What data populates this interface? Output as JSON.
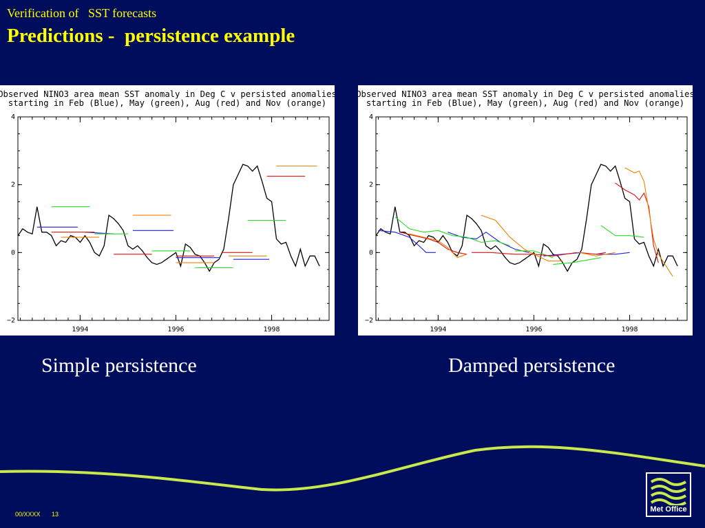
{
  "slide": {
    "supertitle": "Verification of   SST forecasts",
    "title": "Predictions -  persistence example",
    "footer_code": "00/XXXX",
    "page_number": "13",
    "logo_text": "Met Office",
    "colors": {
      "background": "#000d5c",
      "title": "#ffff00",
      "caption": "#ffffff",
      "swoosh": "#c9e84b"
    }
  },
  "captions": {
    "left": "Simple persistence",
    "right": "Damped persistence"
  },
  "chart_data": [
    {
      "type": "line",
      "title_line1": "Observed NINO3 area mean SST anomaly in Deg C v persisted anomalies",
      "title_line2": "starting in Feb (Blue), May (green), Aug (red) and Nov (orange)",
      "xlabel": "",
      "ylabel": "",
      "xlim": [
        1992.7,
        1999.2
      ],
      "ylim": [
        -2,
        4
      ],
      "xticks": [
        "1994",
        "1996",
        "1998"
      ],
      "yticks": [
        "4",
        "2",
        "0",
        "−2"
      ],
      "grid": false,
      "series": [
        {
          "color": "black",
          "x": [
            1992.7,
            1992.8,
            1992.9,
            1993.0,
            1993.1,
            1993.2,
            1993.3,
            1993.4,
            1993.5,
            1993.6,
            1993.7,
            1993.8,
            1993.9,
            1994.0,
            1994.1,
            1994.2,
            1994.3,
            1994.4,
            1994.5,
            1994.6,
            1994.7,
            1994.8,
            1994.9,
            1995.0,
            1995.1,
            1995.2,
            1995.3,
            1995.4,
            1995.5,
            1995.6,
            1995.7,
            1995.8,
            1995.9,
            1996.0,
            1996.1,
            1996.2,
            1996.3,
            1996.4,
            1996.5,
            1996.6,
            1996.7,
            1996.8,
            1996.9,
            1997.0,
            1997.1,
            1997.2,
            1997.3,
            1997.4,
            1997.5,
            1997.6,
            1997.7,
            1997.8,
            1997.9,
            1998.0,
            1998.1,
            1998.2,
            1998.3,
            1998.4,
            1998.5,
            1998.6,
            1998.7,
            1998.8,
            1998.9,
            1999.0
          ],
          "y": [
            0.5,
            0.7,
            0.6,
            0.55,
            1.35,
            0.6,
            0.6,
            0.5,
            0.2,
            0.35,
            0.3,
            0.5,
            0.45,
            0.3,
            0.5,
            0.3,
            0.0,
            -0.1,
            0.2,
            1.1,
            1.0,
            0.85,
            0.65,
            0.2,
            0.1,
            0.2,
            0.05,
            -0.15,
            -0.3,
            -0.35,
            -0.3,
            -0.2,
            -0.1,
            0.0,
            -0.4,
            0.25,
            0.15,
            -0.05,
            -0.1,
            -0.3,
            -0.55,
            -0.3,
            -0.2,
            0.1,
            1.0,
            2.0,
            2.3,
            2.6,
            2.55,
            2.4,
            2.55,
            2.1,
            1.6,
            1.5,
            0.4,
            0.25,
            0.3,
            -0.1,
            -0.4,
            0.1,
            -0.4,
            -0.1,
            -0.1,
            -0.4
          ]
        },
        {
          "color": "blue",
          "segments": [
            [
              [
                1993.1,
                0.75
              ],
              [
                1993.95,
                0.75
              ]
            ],
            [
              [
                1994.1,
                0.6
              ],
              [
                1994.7,
                0.55
              ]
            ],
            [
              [
                1995.1,
                0.65
              ],
              [
                1995.95,
                0.65
              ]
            ],
            [
              [
                1996.0,
                -0.15
              ],
              [
                1996.9,
                -0.15
              ]
            ],
            [
              [
                1997.2,
                -0.2
              ],
              [
                1997.95,
                -0.2
              ]
            ]
          ]
        },
        {
          "color": "green",
          "segments": [
            [
              [
                1993.4,
                1.35
              ],
              [
                1994.2,
                1.35
              ]
            ],
            [
              [
                1994.3,
                0.55
              ],
              [
                1995.0,
                0.55
              ]
            ],
            [
              [
                1995.5,
                0.05
              ],
              [
                1996.3,
                0.05
              ]
            ],
            [
              [
                1996.4,
                -0.45
              ],
              [
                1997.2,
                -0.45
              ]
            ],
            [
              [
                1997.5,
                0.95
              ],
              [
                1998.3,
                0.95
              ]
            ]
          ]
        },
        {
          "color": "red",
          "segments": [
            [
              [
                1993.4,
                0.6
              ],
              [
                1994.3,
                0.6
              ]
            ],
            [
              [
                1994.7,
                -0.05
              ],
              [
                1995.5,
                -0.05
              ]
            ],
            [
              [
                1996.0,
                -0.1
              ],
              [
                1996.8,
                -0.1
              ]
            ],
            [
              [
                1996.95,
                0.0
              ],
              [
                1997.6,
                0.0
              ]
            ],
            [
              [
                1997.9,
                2.25
              ],
              [
                1998.7,
                2.25
              ]
            ]
          ]
        },
        {
          "color": "orange",
          "segments": [
            [
              [
                1993.6,
                0.45
              ],
              [
                1994.4,
                0.45
              ]
            ],
            [
              [
                1995.1,
                1.1
              ],
              [
                1995.9,
                1.1
              ]
            ],
            [
              [
                1996.0,
                -0.3
              ],
              [
                1996.8,
                -0.3
              ]
            ],
            [
              [
                1997.1,
                -0.1
              ],
              [
                1997.9,
                -0.1
              ]
            ],
            [
              [
                1998.1,
                2.55
              ],
              [
                1998.95,
                2.55
              ]
            ]
          ]
        }
      ]
    },
    {
      "type": "line",
      "title_line1": "Observed NINO3 area mean SST anomaly in Deg C v persisted anomalies",
      "title_line2": "starting in Feb (Blue), May (green), Aug (red) and Nov (orange)",
      "xlabel": "",
      "ylabel": "",
      "xlim": [
        1992.7,
        1999.2
      ],
      "ylim": [
        -2,
        4
      ],
      "xticks": [
        "1994",
        "1996",
        "1998"
      ],
      "yticks": [
        "4",
        "2",
        "0",
        "−2"
      ],
      "grid": false,
      "series": [
        {
          "color": "black",
          "x": [
            1992.7,
            1992.8,
            1992.9,
            1993.0,
            1993.1,
            1993.2,
            1993.3,
            1993.4,
            1993.5,
            1993.6,
            1993.7,
            1993.8,
            1993.9,
            1994.0,
            1994.1,
            1994.2,
            1994.3,
            1994.4,
            1994.5,
            1994.6,
            1994.7,
            1994.8,
            1994.9,
            1995.0,
            1995.1,
            1995.2,
            1995.3,
            1995.4,
            1995.5,
            1995.6,
            1995.7,
            1995.8,
            1995.9,
            1996.0,
            1996.1,
            1996.2,
            1996.3,
            1996.4,
            1996.5,
            1996.6,
            1996.7,
            1996.8,
            1996.9,
            1997.0,
            1997.1,
            1997.2,
            1997.3,
            1997.4,
            1997.5,
            1997.6,
            1997.7,
            1997.8,
            1997.9,
            1998.0,
            1998.1,
            1998.2,
            1998.3,
            1998.4,
            1998.5,
            1998.6,
            1998.7,
            1998.8,
            1998.9,
            1999.0
          ],
          "y": [
            0.5,
            0.7,
            0.6,
            0.55,
            1.35,
            0.6,
            0.6,
            0.5,
            0.2,
            0.35,
            0.3,
            0.5,
            0.45,
            0.3,
            0.5,
            0.3,
            0.0,
            -0.1,
            0.2,
            1.1,
            1.0,
            0.85,
            0.65,
            0.2,
            0.1,
            0.2,
            0.05,
            -0.15,
            -0.3,
            -0.35,
            -0.3,
            -0.2,
            -0.1,
            0.0,
            -0.4,
            0.25,
            0.15,
            -0.05,
            -0.1,
            -0.3,
            -0.55,
            -0.3,
            -0.2,
            0.1,
            1.0,
            2.0,
            2.3,
            2.6,
            2.55,
            2.4,
            2.55,
            2.1,
            1.6,
            1.5,
            0.4,
            0.25,
            0.3,
            -0.1,
            -0.4,
            0.1,
            -0.4,
            -0.1,
            -0.1,
            -0.4
          ]
        },
        {
          "color": "blue",
          "segments": [
            [
              [
                1992.75,
                0.65
              ],
              [
                1993.1,
                0.6
              ],
              [
                1993.4,
                0.45
              ],
              [
                1993.6,
                0.2
              ],
              [
                1993.75,
                0.0
              ],
              [
                1993.95,
                0.0
              ]
            ],
            [
              [
                1994.2,
                0.6
              ],
              [
                1994.5,
                0.45
              ],
              [
                1994.8,
                0.4
              ],
              [
                1995.0,
                0.6
              ],
              [
                1995.3,
                0.3
              ],
              [
                1995.6,
                0.1
              ],
              [
                1995.9,
                0.0
              ]
            ],
            [
              [
                1996.2,
                -0.1
              ],
              [
                1996.6,
                -0.05
              ],
              [
                1997.0,
                0.0
              ]
            ],
            [
              [
                1997.3,
                -0.05
              ],
              [
                1997.7,
                -0.05
              ],
              [
                1998.0,
                0.0
              ]
            ]
          ]
        },
        {
          "color": "green",
          "segments": [
            [
              [
                1993.1,
                1.05
              ],
              [
                1993.4,
                0.7
              ],
              [
                1993.7,
                0.6
              ],
              [
                1994.0,
                0.65
              ],
              [
                1994.3,
                0.5
              ],
              [
                1994.6,
                0.45
              ],
              [
                1994.9,
                0.3
              ],
              [
                1995.2,
                0.35
              ],
              [
                1995.5,
                0.2
              ]
            ],
            [
              [
                1995.6,
                0.05
              ],
              [
                1996.0,
                0.05
              ],
              [
                1996.4,
                -0.15
              ]
            ],
            [
              [
                1996.4,
                -0.35
              ],
              [
                1996.8,
                -0.3
              ],
              [
                1997.2,
                -0.2
              ],
              [
                1997.4,
                -0.15
              ]
            ],
            [
              [
                1997.4,
                0.8
              ],
              [
                1997.7,
                0.5
              ],
              [
                1998.0,
                0.5
              ],
              [
                1998.3,
                0.45
              ]
            ]
          ]
        },
        {
          "color": "red",
          "segments": [
            [
              [
                1993.2,
                0.6
              ],
              [
                1993.5,
                0.5
              ],
              [
                1993.8,
                0.4
              ],
              [
                1994.0,
                0.3
              ],
              [
                1994.2,
                0.1
              ],
              [
                1994.4,
                0.0
              ],
              [
                1994.6,
                -0.05
              ]
            ],
            [
              [
                1994.7,
                0.0
              ],
              [
                1995.1,
                0.0
              ],
              [
                1995.6,
                -0.05
              ],
              [
                1996.0,
                -0.05
              ]
            ],
            [
              [
                1996.0,
                -0.05
              ],
              [
                1996.4,
                -0.1
              ],
              [
                1996.9,
                0.0
              ]
            ],
            [
              [
                1996.95,
                0.0
              ],
              [
                1997.3,
                -0.05
              ],
              [
                1997.5,
                0.0
              ]
            ],
            [
              [
                1997.7,
                2.05
              ],
              [
                1997.9,
                1.85
              ],
              [
                1998.1,
                1.7
              ],
              [
                1998.2,
                1.55
              ],
              [
                1998.3,
                1.75
              ],
              [
                1998.4,
                1.35
              ],
              [
                1998.5,
                0.2
              ],
              [
                1998.6,
                -0.3
              ]
            ]
          ]
        },
        {
          "color": "orange",
          "segments": [
            [
              [
                1993.4,
                0.55
              ],
              [
                1993.7,
                0.45
              ],
              [
                1994.0,
                0.35
              ],
              [
                1994.2,
                0.15
              ],
              [
                1994.4,
                -0.15
              ],
              [
                1994.6,
                -0.05
              ]
            ],
            [
              [
                1994.9,
                1.1
              ],
              [
                1995.2,
                0.95
              ],
              [
                1995.5,
                0.45
              ],
              [
                1995.8,
                0.1
              ],
              [
                1996.0,
                -0.05
              ],
              [
                1996.3,
                -0.25
              ],
              [
                1996.6,
                -0.25
              ]
            ],
            [
              [
                1996.95,
                0.0
              ],
              [
                1997.3,
                -0.1
              ],
              [
                1997.7,
                0.0
              ]
            ],
            [
              [
                1997.9,
                2.5
              ],
              [
                1998.1,
                2.35
              ],
              [
                1998.2,
                2.4
              ],
              [
                1998.3,
                2.1
              ],
              [
                1998.5,
                0.4
              ],
              [
                1998.6,
                -0.05
              ],
              [
                1998.9,
                -0.7
              ]
            ]
          ]
        }
      ]
    }
  ]
}
